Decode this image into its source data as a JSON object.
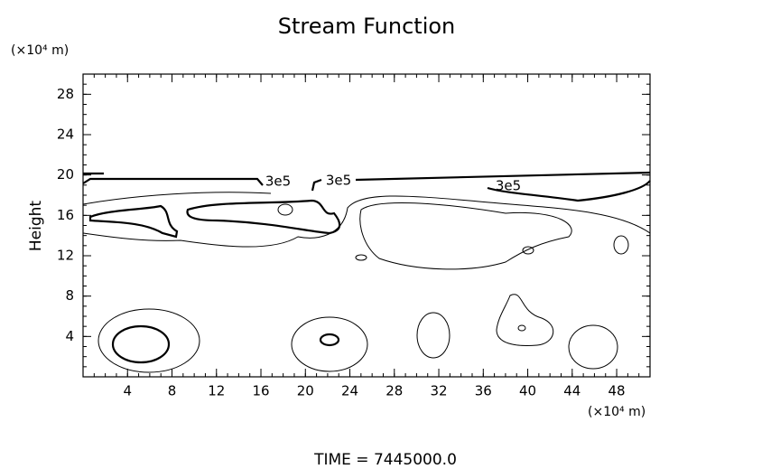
{
  "chart_data": {
    "type": "contour",
    "title": "Stream Function",
    "ylabel": "Height",
    "y_unit": "(×10⁴ m)",
    "x_unit": "(×10⁴ m)",
    "xlim": [
      0,
      51
    ],
    "xticks": [
      4,
      8,
      12,
      16,
      20,
      24,
      28,
      32,
      36,
      40,
      44,
      48
    ],
    "ylim": [
      0,
      30
    ],
    "yticks": [
      4,
      8,
      12,
      16,
      20,
      24,
      28
    ],
    "xminor": 1,
    "yminor": 1,
    "contour_labels": [
      "3e5",
      "3e5",
      "3e5"
    ],
    "footer": "TIME  =  7445000.0"
  }
}
